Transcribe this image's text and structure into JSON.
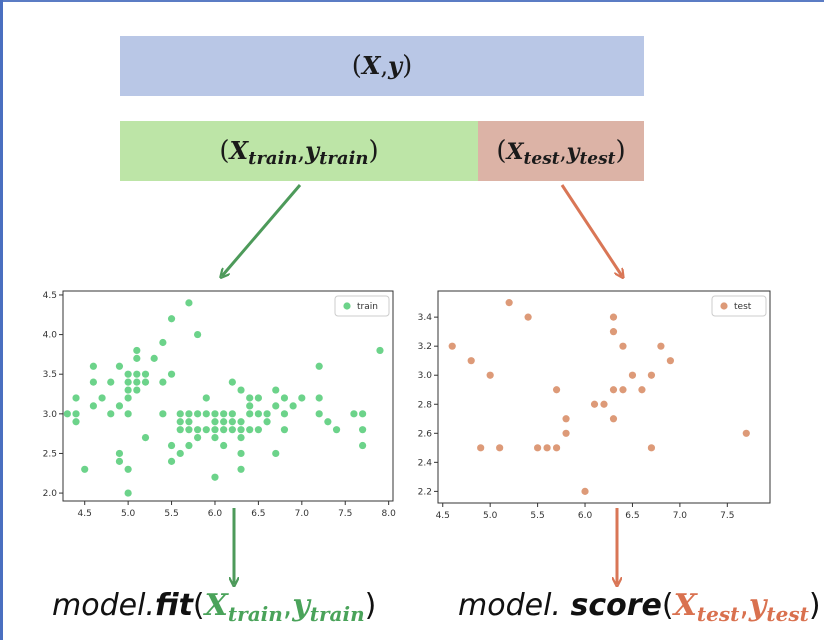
{
  "colors": {
    "full_bar": "#b9c7e6",
    "train_bar": "#bde5a7",
    "test_bar": "#dcb3a6",
    "train_arrow": "#4d9a5a",
    "test_arrow": "#d97656",
    "train_points": "#6cd38a",
    "test_points": "#dd9a78"
  },
  "bars": {
    "full": {
      "x": "X",
      "y": "y",
      "open": "(",
      "sep": ",",
      "close": ")"
    },
    "train": {
      "x": "X",
      "y": "y",
      "sub": "train",
      "open": "(",
      "sep": ",",
      "close": ")"
    },
    "test": {
      "x": "X",
      "y": "y",
      "sub": "test",
      "open": "(",
      "sep": ",",
      "close": ")"
    }
  },
  "captions": {
    "fit": {
      "prefix": "model.",
      "method": "fit",
      "open": "(",
      "x": "X",
      "y": "y",
      "sub": "train",
      "sep": ",",
      "close": ")"
    },
    "score": {
      "prefix": "model. ",
      "method": "score",
      "open": "(",
      "x": "X",
      "y": "y",
      "sub": "test",
      "sep": ",",
      "close": ")"
    }
  },
  "chart_data": [
    {
      "type": "scatter",
      "legend": "train",
      "legend_position": "top-right",
      "grid": false,
      "xlim": [
        4.25,
        8.05
      ],
      "ylim": [
        1.9,
        4.55
      ],
      "xticks": [
        "4.5",
        "5.0",
        "5.5",
        "6.0",
        "6.5",
        "7.0",
        "7.5",
        "8.0"
      ],
      "xtick_values": [
        4.5,
        5.0,
        5.5,
        6.0,
        6.5,
        7.0,
        7.5,
        8.0
      ],
      "yticks": [
        "2.0",
        "2.5",
        "3.0",
        "3.5",
        "4.0",
        "4.5"
      ],
      "ytick_values": [
        2.0,
        2.5,
        3.0,
        3.5,
        4.0,
        4.5
      ],
      "points": [
        [
          4.3,
          3.0
        ],
        [
          4.4,
          2.9
        ],
        [
          4.4,
          3.0
        ],
        [
          4.4,
          3.2
        ],
        [
          4.5,
          2.3
        ],
        [
          4.6,
          3.1
        ],
        [
          4.6,
          3.4
        ],
        [
          4.6,
          3.6
        ],
        [
          4.7,
          3.2
        ],
        [
          4.8,
          3.0
        ],
        [
          4.8,
          3.4
        ],
        [
          4.9,
          3.1
        ],
        [
          4.9,
          2.5
        ],
        [
          4.9,
          2.4
        ],
        [
          4.9,
          3.6
        ],
        [
          5.0,
          3.0
        ],
        [
          5.0,
          3.2
        ],
        [
          5.0,
          3.3
        ],
        [
          5.0,
          3.4
        ],
        [
          5.0,
          3.5
        ],
        [
          5.0,
          2.0
        ],
        [
          5.0,
          2.3
        ],
        [
          5.1,
          3.5
        ],
        [
          5.1,
          3.8
        ],
        [
          5.1,
          3.7
        ],
        [
          5.1,
          3.4
        ],
        [
          5.1,
          3.3
        ],
        [
          5.2,
          3.4
        ],
        [
          5.2,
          3.5
        ],
        [
          5.2,
          2.7
        ],
        [
          5.3,
          3.7
        ],
        [
          5.4,
          3.9
        ],
        [
          5.4,
          3.4
        ],
        [
          5.4,
          3.0
        ],
        [
          5.5,
          4.2
        ],
        [
          5.5,
          3.5
        ],
        [
          5.5,
          2.4
        ],
        [
          5.5,
          2.6
        ],
        [
          5.6,
          3.0
        ],
        [
          5.6,
          2.8
        ],
        [
          5.6,
          2.5
        ],
        [
          5.7,
          4.4
        ],
        [
          5.7,
          2.8
        ],
        [
          5.7,
          2.9
        ],
        [
          5.7,
          3.0
        ],
        [
          5.7,
          2.6
        ],
        [
          5.8,
          4.0
        ],
        [
          5.8,
          2.7
        ],
        [
          5.8,
          2.8
        ],
        [
          5.9,
          3.2
        ],
        [
          5.9,
          3.0
        ],
        [
          6.0,
          2.2
        ],
        [
          6.0,
          2.7
        ],
        [
          6.0,
          2.9
        ],
        [
          6.0,
          3.0
        ],
        [
          6.0,
          2.8
        ],
        [
          6.1,
          3.0
        ],
        [
          6.1,
          2.8
        ],
        [
          6.1,
          2.6
        ],
        [
          6.2,
          2.9
        ],
        [
          6.2,
          2.8
        ],
        [
          6.2,
          3.4
        ],
        [
          6.3,
          2.5
        ],
        [
          6.3,
          2.3
        ],
        [
          6.3,
          2.7
        ],
        [
          6.3,
          2.9
        ],
        [
          6.3,
          3.3
        ],
        [
          6.4,
          3.2
        ],
        [
          6.4,
          2.8
        ],
        [
          6.4,
          3.1
        ],
        [
          6.5,
          3.0
        ],
        [
          6.5,
          2.8
        ],
        [
          6.5,
          3.2
        ],
        [
          6.6,
          3.0
        ],
        [
          6.6,
          2.9
        ],
        [
          6.7,
          3.1
        ],
        [
          6.7,
          3.3
        ],
        [
          6.7,
          2.5
        ],
        [
          6.8,
          3.0
        ],
        [
          6.8,
          2.8
        ],
        [
          6.9,
          3.1
        ],
        [
          7.0,
          3.2
        ],
        [
          7.2,
          3.6
        ],
        [
          7.2,
          3.2
        ],
        [
          7.2,
          3.0
        ],
        [
          7.3,
          2.9
        ],
        [
          7.4,
          2.8
        ],
        [
          7.6,
          3.0
        ],
        [
          7.7,
          3.0
        ],
        [
          7.7,
          2.8
        ],
        [
          7.7,
          2.6
        ],
        [
          7.9,
          3.8
        ],
        [
          6.2,
          3.0
        ],
        [
          6.4,
          3.0
        ],
        [
          6.8,
          3.2
        ],
        [
          5.8,
          3.0
        ],
        [
          6.1,
          2.9
        ],
        [
          6.3,
          2.8
        ],
        [
          5.6,
          2.9
        ],
        [
          5.9,
          2.8
        ]
      ]
    },
    {
      "type": "scatter",
      "legend": "test",
      "legend_position": "top-right",
      "grid": false,
      "xlim": [
        4.45,
        7.95
      ],
      "ylim": [
        2.12,
        3.58
      ],
      "xticks": [
        "4.5",
        "5.0",
        "5.5",
        "6.0",
        "6.5",
        "7.0",
        "7.5"
      ],
      "xtick_values": [
        4.5,
        5.0,
        5.5,
        6.0,
        6.5,
        7.0,
        7.5
      ],
      "yticks": [
        "2.2",
        "2.4",
        "2.6",
        "2.8",
        "3.0",
        "3.2",
        "3.4"
      ],
      "ytick_values": [
        2.2,
        2.4,
        2.6,
        2.8,
        3.0,
        3.2,
        3.4
      ],
      "points": [
        [
          4.6,
          3.2
        ],
        [
          4.8,
          3.1
        ],
        [
          4.9,
          2.5
        ],
        [
          5.0,
          3.0
        ],
        [
          5.1,
          2.5
        ],
        [
          5.2,
          3.5
        ],
        [
          5.4,
          3.4
        ],
        [
          5.5,
          2.5
        ],
        [
          5.6,
          2.5
        ],
        [
          5.7,
          2.5
        ],
        [
          5.7,
          2.9
        ],
        [
          5.8,
          2.7
        ],
        [
          5.8,
          2.6
        ],
        [
          6.0,
          2.2
        ],
        [
          6.1,
          2.8
        ],
        [
          6.2,
          2.8
        ],
        [
          6.3,
          3.4
        ],
        [
          6.3,
          3.3
        ],
        [
          6.3,
          2.7
        ],
        [
          6.3,
          2.9
        ],
        [
          6.4,
          2.9
        ],
        [
          6.4,
          3.2
        ],
        [
          6.5,
          3.0
        ],
        [
          6.6,
          2.9
        ],
        [
          6.7,
          2.5
        ],
        [
          6.7,
          3.0
        ],
        [
          6.8,
          3.2
        ],
        [
          6.9,
          3.1
        ],
        [
          7.7,
          2.6
        ]
      ]
    }
  ]
}
